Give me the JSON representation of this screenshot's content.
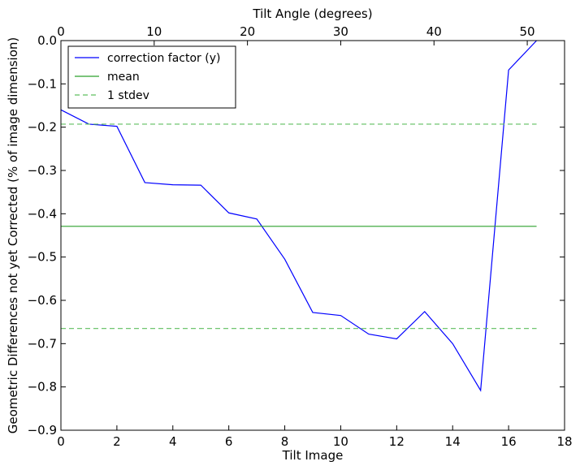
{
  "chart_data": {
    "type": "line",
    "xlabel": "Tilt Image",
    "ylabel": "Geometric Differences not yet Corrected (% of image dimension)",
    "top_xlabel": "Tilt Angle (degrees)",
    "xlim": [
      0,
      18
    ],
    "ylim": [
      -0.9,
      0.0
    ],
    "top_xlim": [
      0,
      54
    ],
    "x_ticks": [
      0,
      2,
      4,
      6,
      8,
      10,
      12,
      14,
      16,
      18
    ],
    "y_ticks": [
      0.0,
      -0.1,
      -0.2,
      -0.3,
      -0.4,
      -0.5,
      -0.6,
      -0.7,
      -0.8,
      -0.9
    ],
    "y_tick_labels": [
      "0.0",
      "−0.1",
      "−0.2",
      "−0.3",
      "−0.4",
      "−0.5",
      "−0.6",
      "−0.7",
      "−0.8",
      "−0.9"
    ],
    "top_ticks": [
      0,
      10,
      20,
      30,
      40,
      50
    ],
    "grid": false,
    "legend_position": "top-left",
    "series": [
      {
        "name": "correction factor (y)",
        "color": "#0000ff",
        "style": "solid",
        "x": [
          0,
          1,
          2,
          3,
          4,
          5,
          6,
          7,
          8,
          9,
          10,
          11,
          12,
          13,
          14,
          15,
          16,
          17
        ],
        "y": [
          -0.16,
          -0.193,
          -0.198,
          -0.328,
          -0.333,
          -0.334,
          -0.398,
          -0.412,
          -0.505,
          -0.628,
          -0.635,
          -0.678,
          -0.689,
          -0.626,
          -0.7,
          -0.808,
          -0.068,
          0.0
        ]
      },
      {
        "name": "mean",
        "color": "#2ca02c",
        "style": "solid",
        "x": [
          0,
          17
        ],
        "y": [
          -0.429,
          -0.429
        ]
      },
      {
        "name": "1 stdev",
        "color": "#5fbf5f",
        "style": "dashed",
        "x": [
          0,
          17
        ],
        "y": [
          -0.193,
          -0.193
        ]
      },
      {
        "name": "",
        "color": "#5fbf5f",
        "style": "dashed",
        "x": [
          0,
          17
        ],
        "y": [
          -0.665,
          -0.665
        ]
      }
    ]
  }
}
